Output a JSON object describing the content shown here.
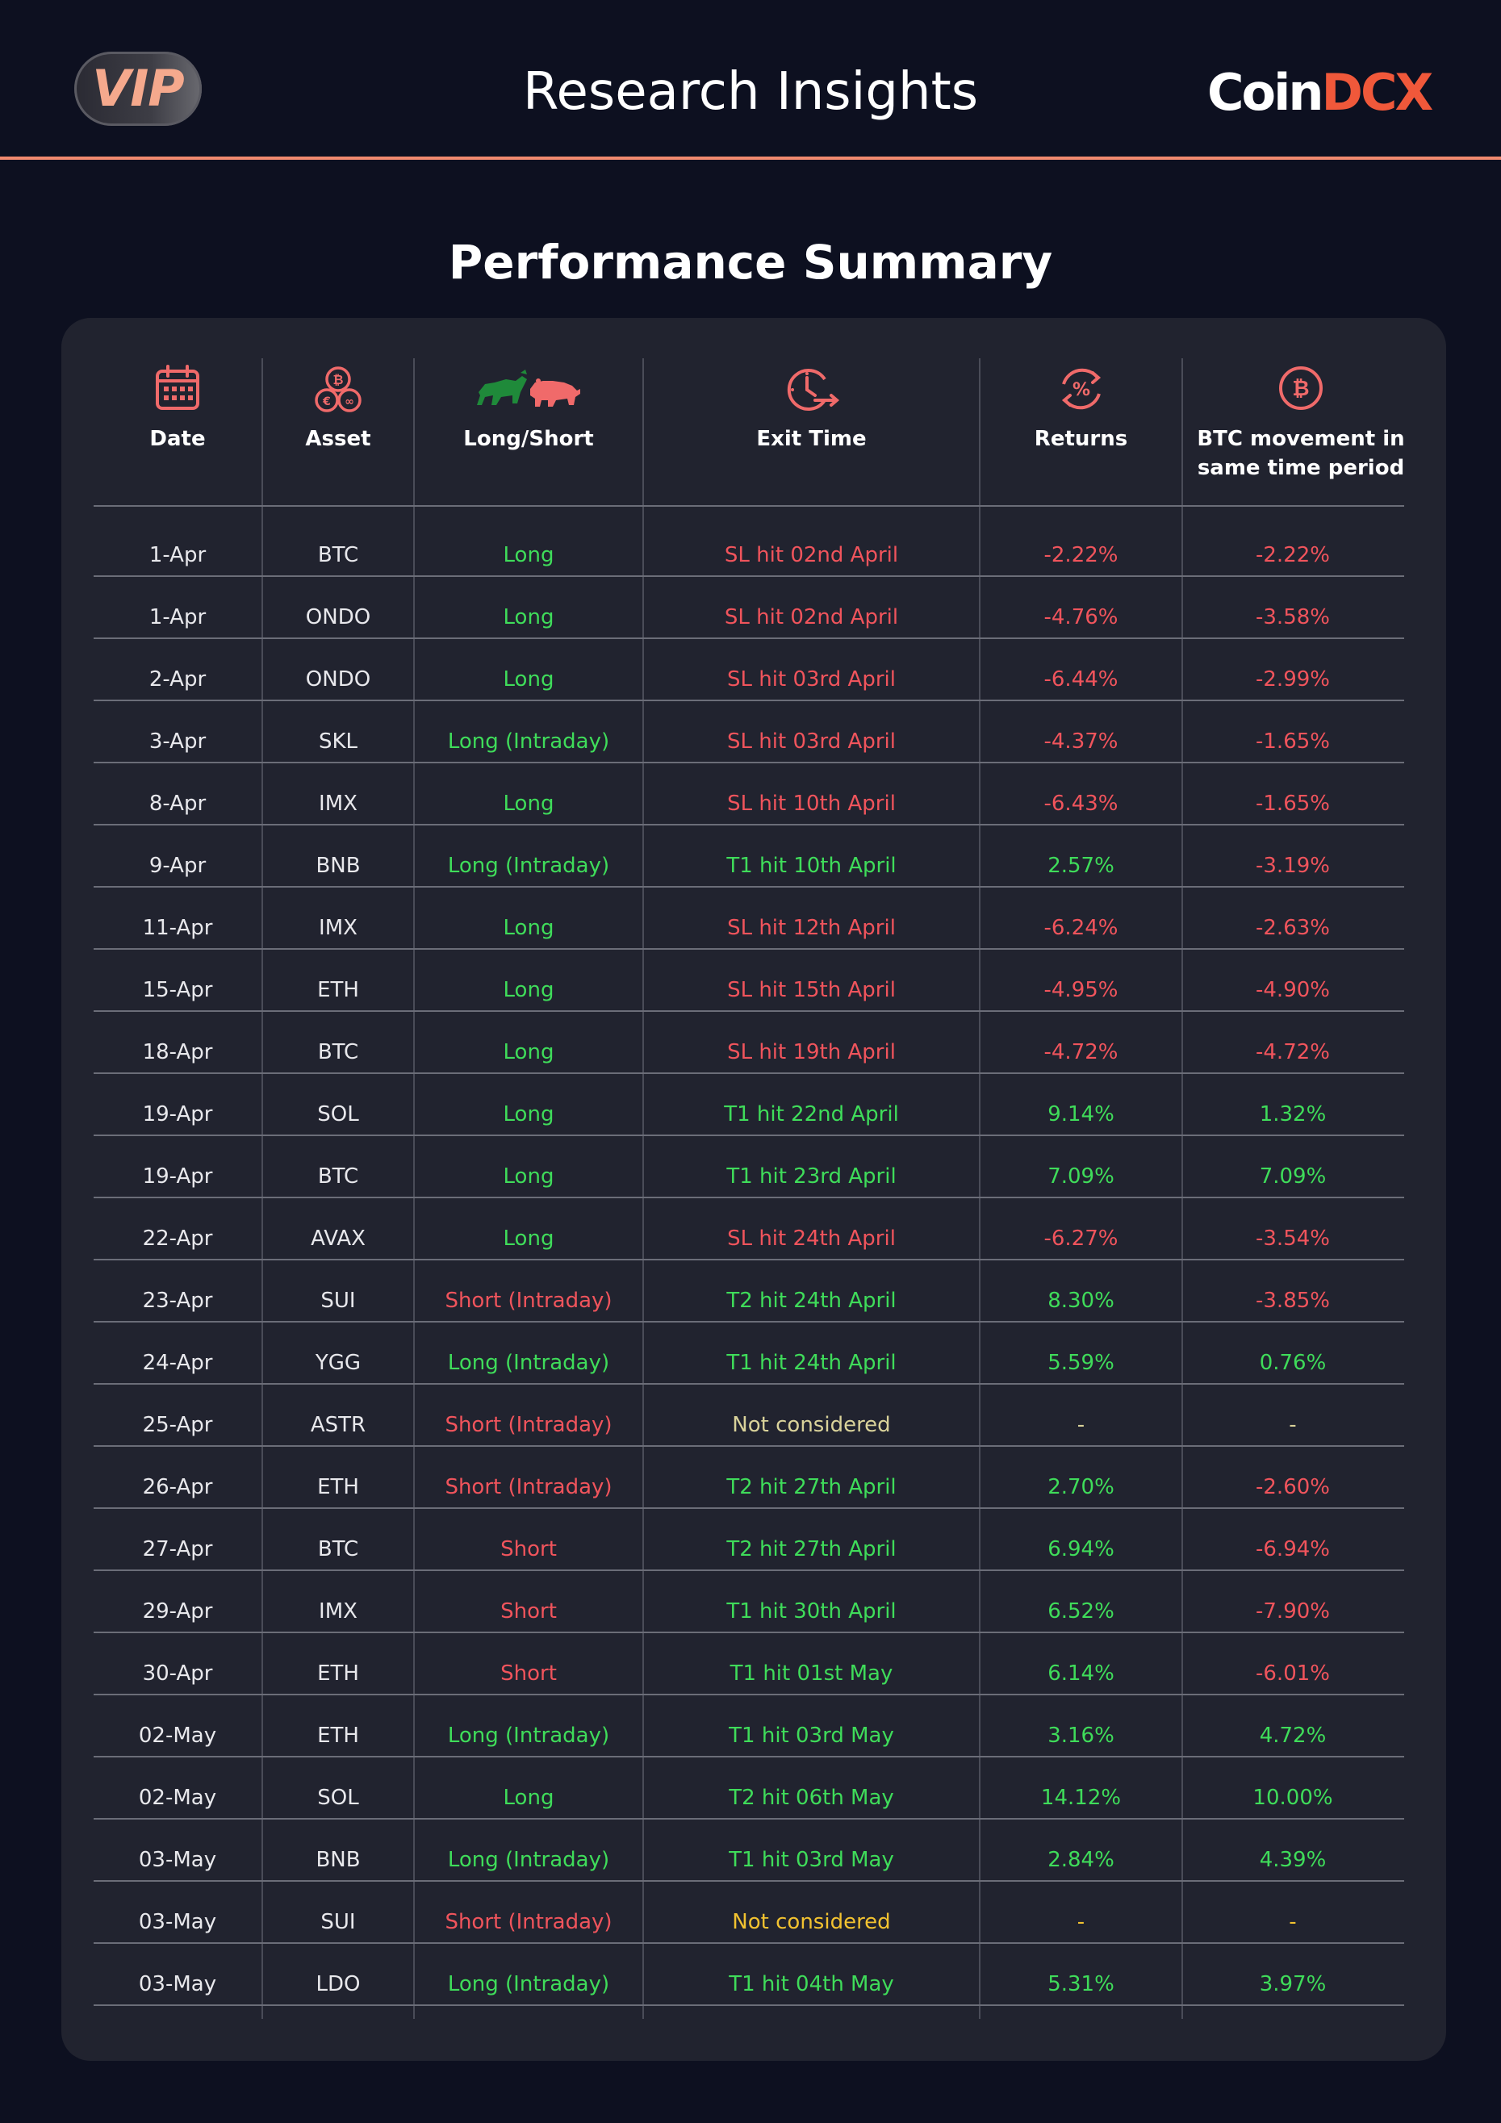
{
  "header": {
    "badge": "VIP",
    "title": "Research Insights",
    "logo_part1": "Coin",
    "logo_part2": "DCX"
  },
  "section_title": "Performance Summary",
  "columns": {
    "date": "Date",
    "asset": "Asset",
    "side": "Long/Short",
    "exit": "Exit Time",
    "returns": "Returns",
    "btc_line1": "BTC movement in",
    "btc_line2": "same time period"
  },
  "colors": {
    "green": "#3fdc5a",
    "red": "#f0545c",
    "muted": "#d9d29a",
    "yellow": "#f2c230",
    "accent": "#f0583a"
  },
  "rows": [
    {
      "date": "1-Apr",
      "asset": "BTC",
      "side": "Long",
      "exit": "SL hit 02nd April",
      "ret": "-2.22%",
      "btc": "-2.22%"
    },
    {
      "date": "1-Apr",
      "asset": "ONDO",
      "side": "Long",
      "exit": "SL hit 02nd April",
      "ret": "-4.76%",
      "btc": "-3.58%"
    },
    {
      "date": "2-Apr",
      "asset": "ONDO",
      "side": "Long",
      "exit": "SL hit 03rd April",
      "ret": "-6.44%",
      "btc": "-2.99%"
    },
    {
      "date": "3-Apr",
      "asset": "SKL",
      "side": "Long (Intraday)",
      "exit": "SL hit 03rd April",
      "ret": "-4.37%",
      "btc": "-1.65%"
    },
    {
      "date": "8-Apr",
      "asset": "IMX",
      "side": "Long",
      "exit": "SL hit 10th April",
      "ret": "-6.43%",
      "btc": "-1.65%"
    },
    {
      "date": "9-Apr",
      "asset": "BNB",
      "side": "Long (Intraday)",
      "exit": "T1 hit 10th April",
      "ret": "2.57%",
      "btc": "-3.19%"
    },
    {
      "date": "11-Apr",
      "asset": "IMX",
      "side": "Long",
      "exit": "SL hit 12th April",
      "ret": "-6.24%",
      "btc": "-2.63%"
    },
    {
      "date": "15-Apr",
      "asset": "ETH",
      "side": "Long",
      "exit": "SL hit 15th April",
      "ret": "-4.95%",
      "btc": "-4.90%"
    },
    {
      "date": "18-Apr",
      "asset": "BTC",
      "side": "Long",
      "exit": "SL hit 19th April",
      "ret": "-4.72%",
      "btc": "-4.72%"
    },
    {
      "date": "19-Apr",
      "asset": "SOL",
      "side": "Long",
      "exit": "T1 hit 22nd April",
      "ret": "9.14%",
      "btc": "1.32%"
    },
    {
      "date": "19-Apr",
      "asset": "BTC",
      "side": "Long",
      "exit": "T1 hit 23rd April",
      "ret": "7.09%",
      "btc": "7.09%"
    },
    {
      "date": "22-Apr",
      "asset": "AVAX",
      "side": "Long",
      "exit": "SL hit 24th April",
      "ret": "-6.27%",
      "btc": "-3.54%"
    },
    {
      "date": "23-Apr",
      "asset": "SUI",
      "side": "Short (Intraday)",
      "exit": "T2 hit 24th April",
      "ret": "8.30%",
      "btc": "-3.85%"
    },
    {
      "date": "24-Apr",
      "asset": "YGG",
      "side": "Long (Intraday)",
      "exit": "T1 hit 24th April",
      "ret": "5.59%",
      "btc": "0.76%"
    },
    {
      "date": "25-Apr",
      "asset": "ASTR",
      "side": "Short (Intraday)",
      "exit": "Not considered",
      "ret": "-",
      "btc": "-"
    },
    {
      "date": "26-Apr",
      "asset": "ETH",
      "side": "Short (Intraday)",
      "exit": "T2 hit 27th April",
      "ret": "2.70%",
      "btc": "-2.60%"
    },
    {
      "date": "27-Apr",
      "asset": "BTC",
      "side": "Short",
      "exit": "T2 hit 27th April",
      "ret": "6.94%",
      "btc": "-6.94%"
    },
    {
      "date": "29-Apr",
      "asset": "IMX",
      "side": "Short",
      "exit": "T1 hit 30th April",
      "ret": "6.52%",
      "btc": "-7.90%"
    },
    {
      "date": "30-Apr",
      "asset": "ETH",
      "side": "Short",
      "exit": "T1 hit 01st May",
      "ret": "6.14%",
      "btc": "-6.01%"
    },
    {
      "date": "02-May",
      "asset": "ETH",
      "side": "Long (Intraday)",
      "exit": "T1 hit 03rd May",
      "ret": "3.16%",
      "btc": "4.72%"
    },
    {
      "date": "02-May",
      "asset": "SOL",
      "side": "Long",
      "exit": "T2 hit 06th May",
      "ret": "14.12%",
      "btc": "10.00%"
    },
    {
      "date": "03-May",
      "asset": "BNB",
      "side": "Long (Intraday)",
      "exit": "T1 hit 03rd May",
      "ret": "2.84%",
      "btc": "4.39%"
    },
    {
      "date": "03-May",
      "asset": "SUI",
      "side": "Short (Intraday)",
      "exit": "Not considered",
      "ret": "-",
      "btc": "-"
    },
    {
      "date": "03-May",
      "asset": "LDO",
      "side": "Long (Intraday)",
      "exit": "T1 hit 04th May",
      "ret": "5.31%",
      "btc": "3.97%"
    }
  ]
}
